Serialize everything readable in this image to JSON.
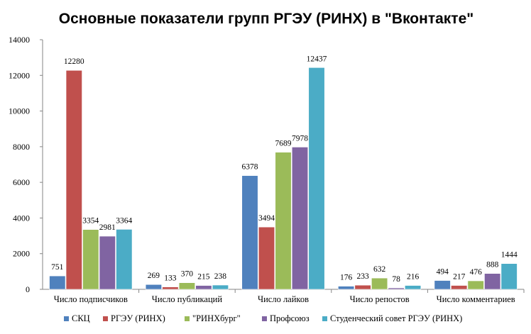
{
  "chart_data": {
    "type": "bar",
    "title": "Основные показатели групп РГЭУ (РИНХ) в \"Вконтакте\"",
    "categories": [
      "Число подписчиков",
      "Число публикаций",
      "Число лайков",
      "Число репостов",
      "Число комментариев"
    ],
    "series": [
      {
        "name": "СКЦ",
        "color": "#4F81BD",
        "values": [
          751,
          269,
          6378,
          176,
          494
        ]
      },
      {
        "name": "РГЭУ (РИНХ)",
        "color": "#C0504D",
        "values": [
          12280,
          133,
          3494,
          233,
          217
        ]
      },
      {
        "name": "\"РИНХбург\"",
        "color": "#9BBB59",
        "values": [
          3354,
          370,
          7689,
          632,
          476
        ]
      },
      {
        "name": "Профсоюз",
        "color": "#8064A2",
        "values": [
          2981,
          215,
          7978,
          78,
          888
        ]
      },
      {
        "name": "Студенческий  совет РГЭУ (РИНХ)",
        "color": "#4BACC6",
        "values": [
          3364,
          238,
          12437,
          216,
          1444
        ]
      }
    ],
    "ylim": [
      0,
      14000
    ],
    "yticks": [
      0,
      2000,
      4000,
      6000,
      8000,
      10000,
      12000,
      14000
    ],
    "grid": false,
    "legend": "bottom"
  }
}
